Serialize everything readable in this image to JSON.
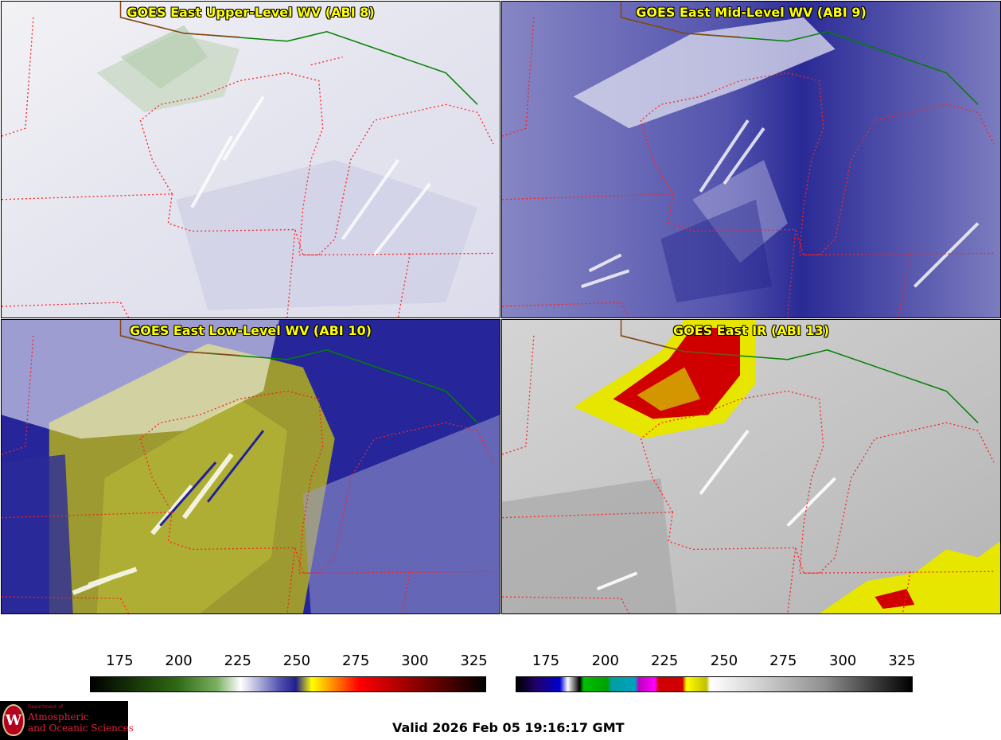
{
  "panels": [
    {
      "title": "GOES East Upper-Level WV (ABI 8)"
    },
    {
      "title": "GOES East Mid-Level WV (ABI 9)"
    },
    {
      "title": "GOES East Low-Level WV (ABI 10)"
    },
    {
      "title": "GOES East IR (ABI 13)"
    }
  ],
  "colorbars": {
    "wv": {
      "ticks": [
        "175",
        "200",
        "225",
        "250",
        "275",
        "300",
        "325"
      ]
    },
    "ir": {
      "ticks": [
        "175",
        "200",
        "225",
        "250",
        "275",
        "300",
        "325"
      ]
    }
  },
  "logo": {
    "dept": "Department of",
    "line1": "Atmospheric",
    "line2": "and Oceanic Sciences"
  },
  "valid_time": "Valid 2026 Feb 05 19:16:17 GMT",
  "colors": {
    "state_borders": "#ff2020",
    "international_border": "#008000",
    "title_text": "#ffff00"
  }
}
